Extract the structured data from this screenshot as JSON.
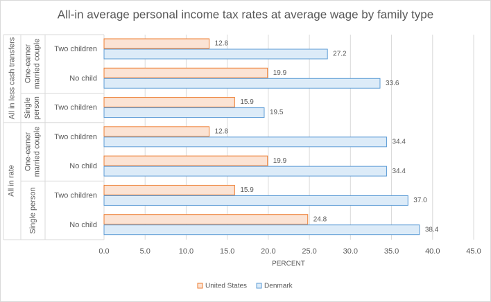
{
  "chart_data": {
    "type": "bar",
    "orientation": "horizontal",
    "title": "All-in average personal income tax rates at average wage by family type",
    "x_label": "PERCENT",
    "category_groups": [
      {
        "name": "All in less cash transfers",
        "subgroups": [
          {
            "name": "One-earner married couple",
            "categories": [
              "Two children",
              "No child"
            ]
          },
          {
            "name": "Single person",
            "categories": [
              "Two children"
            ]
          }
        ]
      },
      {
        "name": "All in rate",
        "subgroups": [
          {
            "name": "One-earner married couple",
            "categories": [
              "Two children",
              "No child"
            ]
          },
          {
            "name": "Single person",
            "categories": [
              "Two children",
              "No child"
            ]
          }
        ]
      }
    ],
    "series": [
      {
        "name": "United States",
        "color": "#fbe3d4",
        "stroke": "#ed7d31",
        "values": [
          12.8,
          19.9,
          15.9,
          12.8,
          19.9,
          15.9,
          24.8
        ],
        "value_labels": [
          "12.8",
          "19.9",
          "15.9",
          "12.8",
          "19.9",
          "15.9",
          "24.8"
        ]
      },
      {
        "name": "Denmark",
        "color": "#dcebf8",
        "stroke": "#5b9bd5",
        "values": [
          27.2,
          33.6,
          19.5,
          34.4,
          34.4,
          37.0,
          38.4
        ],
        "value_labels": [
          "27.2",
          "33.6",
          "19.5",
          "34.4",
          "34.4",
          "37.0",
          "38.4"
        ]
      }
    ],
    "xlim": [
      0,
      45
    ],
    "xticks": [
      {
        "value": 0,
        "label": "0.0"
      },
      {
        "value": 5,
        "label": "5.0"
      },
      {
        "value": 10,
        "label": "10.0"
      },
      {
        "value": 15,
        "label": "15.0"
      },
      {
        "value": 20,
        "label": "20.0"
      },
      {
        "value": 25,
        "label": "25.0"
      },
      {
        "value": 30,
        "label": "30.0"
      },
      {
        "value": 35,
        "label": "35.0"
      },
      {
        "value": 40,
        "label": "40.0"
      },
      {
        "value": 45,
        "label": "45.0"
      }
    ],
    "grid": true,
    "legend": "bottom"
  }
}
